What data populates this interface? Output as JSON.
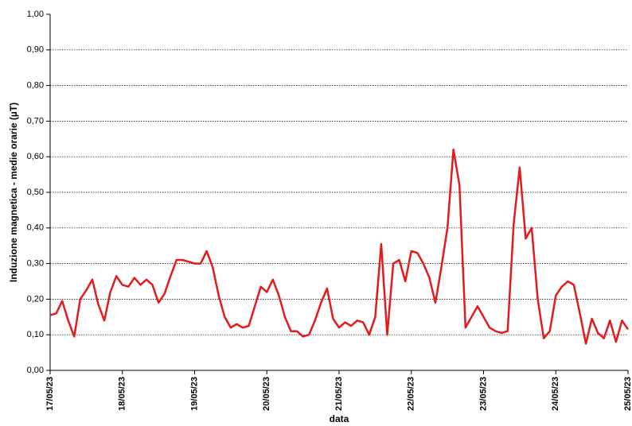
{
  "chart_data": {
    "type": "line",
    "ylabel": "Induzione magnetica - medie orarie (µT)",
    "xlabel": "data",
    "color": "#e41a1c",
    "grid": true,
    "categories": [
      "17/05/23",
      null,
      null,
      null,
      null,
      null,
      null,
      null,
      null,
      null,
      null,
      null,
      "18/05/23",
      null,
      null,
      null,
      null,
      null,
      null,
      null,
      null,
      null,
      null,
      null,
      "19/05/23",
      null,
      null,
      null,
      null,
      null,
      null,
      null,
      null,
      null,
      null,
      null,
      "20/05/23",
      null,
      null,
      null,
      null,
      null,
      null,
      null,
      null,
      null,
      null,
      null,
      "21/05/23",
      null,
      null,
      null,
      null,
      null,
      null,
      null,
      null,
      null,
      null,
      null,
      "22/05/23",
      null,
      null,
      null,
      null,
      null,
      null,
      null,
      null,
      null,
      null,
      null,
      "23/05/23",
      null,
      null,
      null,
      null,
      null,
      null,
      null,
      null,
      null,
      null,
      null,
      "24/05/23",
      null,
      null,
      null,
      null,
      null,
      null,
      null,
      null,
      null,
      null,
      null,
      "25/05/23"
    ],
    "values": [
      0.155,
      0.16,
      0.195,
      0.14,
      0.095,
      0.2,
      0.225,
      0.255,
      0.185,
      0.14,
      0.22,
      0.265,
      0.24,
      0.235,
      0.26,
      0.24,
      0.255,
      0.24,
      0.19,
      0.215,
      0.265,
      0.31,
      0.31,
      0.305,
      0.3,
      0.3,
      0.335,
      0.29,
      0.21,
      0.15,
      0.12,
      0.13,
      0.12,
      0.125,
      0.18,
      0.235,
      0.22,
      0.255,
      0.21,
      0.15,
      0.11,
      0.11,
      0.095,
      0.1,
      0.14,
      0.19,
      0.23,
      0.145,
      0.12,
      0.135,
      0.125,
      0.14,
      0.135,
      0.1,
      0.15,
      0.355,
      0.1,
      0.3,
      0.31,
      0.25,
      0.335,
      0.33,
      0.3,
      0.26,
      0.19,
      0.29,
      0.4,
      0.62,
      0.52,
      0.12,
      0.15,
      0.18,
      0.15,
      0.12,
      0.11,
      0.105,
      0.11,
      0.41,
      0.57,
      0.37,
      0.4,
      0.2,
      0.09,
      0.11,
      0.21,
      0.235,
      0.25,
      0.24,
      0.16,
      0.075,
      0.145,
      0.105,
      0.09,
      0.14,
      0.08,
      0.14,
      0.115
    ],
    "ylim": [
      0,
      1
    ],
    "yticks": [
      {
        "value": 0,
        "label": "0,00"
      },
      {
        "value": 0.1,
        "label": "0,10"
      },
      {
        "value": 0.2,
        "label": "0,20"
      },
      {
        "value": 0.3,
        "label": "0,30"
      },
      {
        "value": 0.4,
        "label": "0,40"
      },
      {
        "value": 0.5,
        "label": "0,50"
      },
      {
        "value": 0.6,
        "label": "0,60"
      },
      {
        "value": 0.7,
        "label": "0,70"
      },
      {
        "value": 0.8,
        "label": "0,80"
      },
      {
        "value": 0.9,
        "label": "0,90"
      },
      {
        "value": 1,
        "label": "1,00"
      }
    ]
  }
}
